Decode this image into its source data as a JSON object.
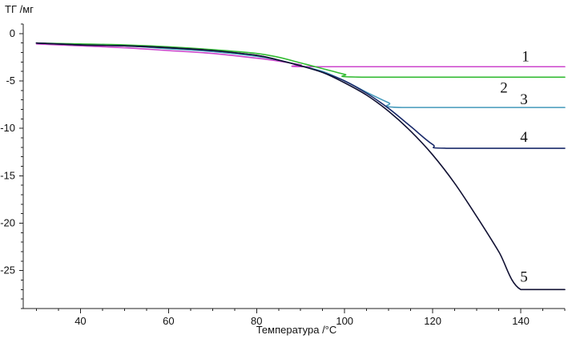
{
  "chart_data": {
    "type": "line",
    "title": "",
    "xlabel": "Температура /°C",
    "ylabel": "ТГ /мг",
    "xlim": [
      27,
      150
    ],
    "ylim": [
      -29,
      1
    ],
    "x_ticks": [
      40,
      60,
      80,
      100,
      120,
      140
    ],
    "y_ticks": [
      0,
      -5,
      -10,
      -15,
      -20,
      -25
    ],
    "grid": false,
    "legend": "none",
    "series": [
      {
        "label": "1",
        "color": "#cc44cc",
        "x": [
          30,
          40,
          50,
          60,
          70,
          80,
          85,
          90,
          93,
          150
        ],
        "y": [
          -1.1,
          -1.3,
          -1.5,
          -1.8,
          -2.1,
          -2.6,
          -2.9,
          -3.3,
          -3.5,
          -3.5
        ]
      },
      {
        "label": "2",
        "color": "#33bb33",
        "x": [
          30,
          40,
          50,
          60,
          70,
          80,
          85,
          90,
          95,
          100,
          104,
          150
        ],
        "y": [
          -1.0,
          -1.1,
          -1.2,
          -1.4,
          -1.7,
          -2.1,
          -2.5,
          -3.1,
          -3.7,
          -4.3,
          -4.6,
          -4.6
        ]
      },
      {
        "label": "3",
        "color": "#4499bb",
        "x": [
          30,
          40,
          50,
          60,
          70,
          80,
          85,
          90,
          95,
          100,
          105,
          110,
          113,
          150
        ],
        "y": [
          -1.0,
          -1.2,
          -1.3,
          -1.6,
          -1.9,
          -2.4,
          -2.8,
          -3.4,
          -4.0,
          -5.0,
          -6.2,
          -7.3,
          -7.8,
          -7.8
        ]
      },
      {
        "label": "4",
        "color": "#1a2a6a",
        "x": [
          30,
          40,
          50,
          60,
          70,
          80,
          85,
          90,
          95,
          100,
          105,
          110,
          115,
          120,
          123,
          150
        ],
        "y": [
          -1.0,
          -1.2,
          -1.3,
          -1.5,
          -1.8,
          -2.3,
          -2.8,
          -3.4,
          -4.1,
          -5.0,
          -6.3,
          -7.9,
          -9.8,
          -11.7,
          -12.1,
          -12.1
        ]
      },
      {
        "label": "5",
        "color": "#111133",
        "x": [
          30,
          40,
          50,
          60,
          70,
          80,
          85,
          90,
          95,
          100,
          105,
          110,
          115,
          120,
          125,
          130,
          135,
          140,
          150
        ],
        "y": [
          -1.0,
          -1.2,
          -1.3,
          -1.5,
          -1.8,
          -2.3,
          -2.8,
          -3.4,
          -4.1,
          -5.2,
          -6.5,
          -8.2,
          -10.3,
          -12.8,
          -15.8,
          -19.3,
          -23.0,
          -27.0,
          -27.0
        ]
      }
    ]
  }
}
